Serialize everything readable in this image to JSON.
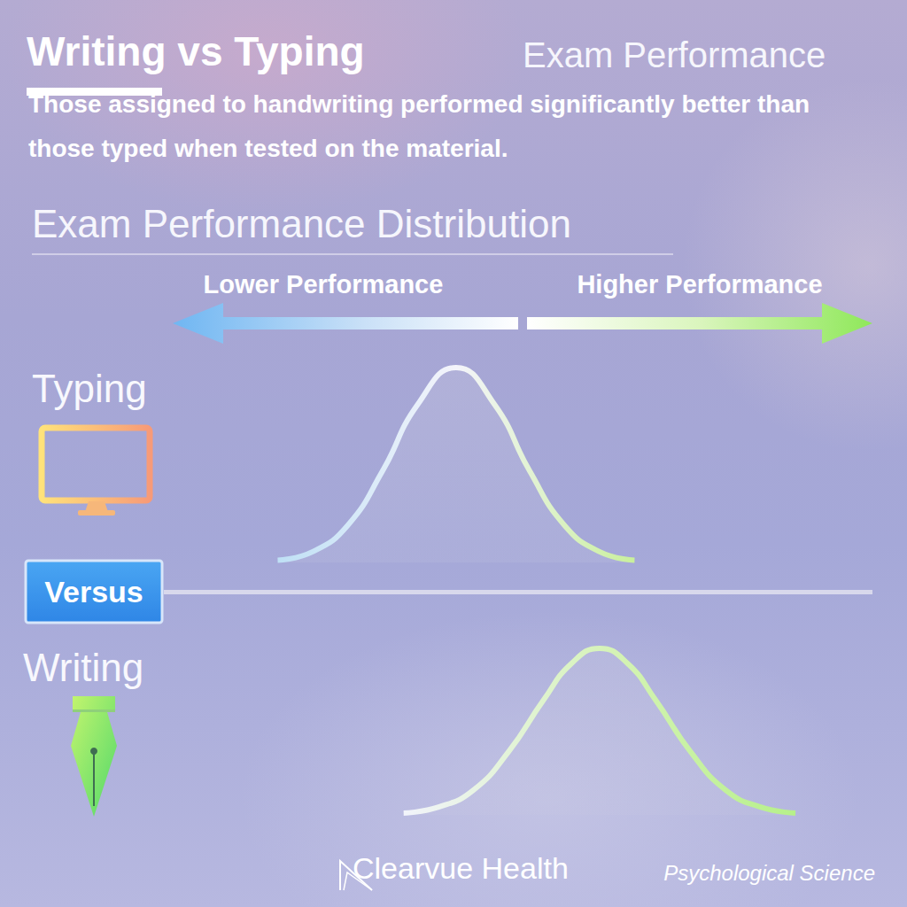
{
  "chart_data": {
    "type": "line",
    "title": "Writing vs Typing",
    "subtitle": "Exam Performance",
    "annotations": {
      "headline": "Those assigned to handwriting performed significantly better than those typed when tested on the material.",
      "section": "Exam Performance Distribution",
      "lower": "Lower Performance",
      "higher": "Higher Performance",
      "divider": "Versus",
      "brand": "Clearvue Health",
      "source": "Psychological Science"
    },
    "xlim": [
      0,
      100
    ],
    "ylim": [
      0,
      100
    ],
    "grid": false,
    "tick_labels": false,
    "series": [
      {
        "name": "Typing",
        "color": "#f4f4fb",
        "x": [
          15,
          20,
          25,
          30,
          35,
          40.5,
          46,
          51,
          56,
          61,
          66
        ],
        "values": [
          1.1,
          5.5,
          19,
          47,
          81,
          100,
          81,
          47,
          19,
          5.5,
          1.1
        ]
      },
      {
        "name": "Writing",
        "color": "#b6f08a",
        "x": [
          33,
          38,
          43,
          48,
          53,
          57,
          61,
          65,
          69,
          74,
          79,
          84,
          89
        ],
        "values": [
          1.1,
          4.7,
          15,
          38,
          69,
          91,
          100,
          91,
          69,
          38,
          15,
          4.7,
          1.1
        ]
      }
    ]
  }
}
